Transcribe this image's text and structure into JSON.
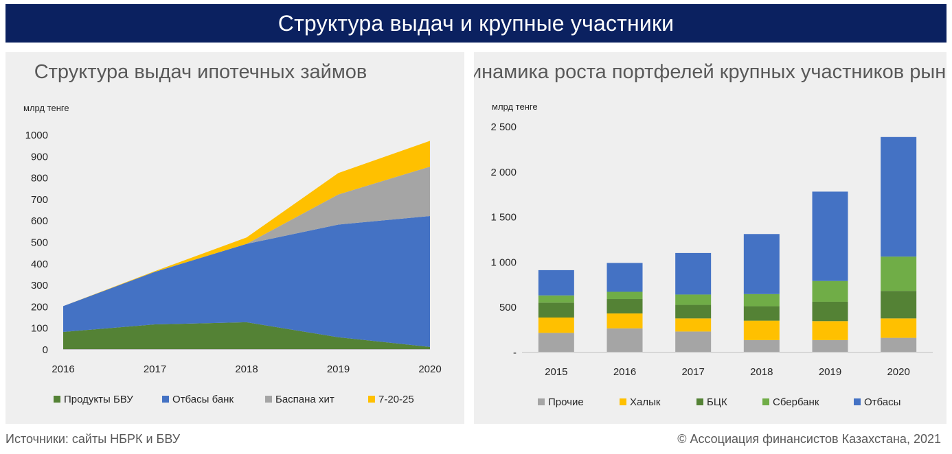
{
  "header": {
    "title": "Структура выдач и крупные участники"
  },
  "footer": {
    "source": "Источники: сайты НБРК и БВУ",
    "copyright": "© Ассоциация финансистов Казахстана, 2021"
  },
  "chart_data": [
    {
      "type": "area",
      "stacked": true,
      "title": "Структура выдач ипотечных займов",
      "ylabel": "млрд тенге",
      "xlabel": "",
      "categories": [
        "2016",
        "2017",
        "2018",
        "2019",
        "2020"
      ],
      "ylim": [
        0,
        1000
      ],
      "yticks": [
        0,
        100,
        200,
        300,
        400,
        500,
        600,
        700,
        800,
        900,
        1000
      ],
      "ytick_labels": [
        "0",
        "100",
        "200",
        "300",
        "400",
        "500",
        "600",
        "700",
        "800",
        "900",
        "1000"
      ],
      "grid": false,
      "legend_position": "bottom",
      "series": [
        {
          "name": "Продукты БВУ",
          "color": "#548235",
          "values": [
            80,
            115,
            125,
            55,
            10
          ]
        },
        {
          "name": "Отбасы банк",
          "color": "#4472c4",
          "values": [
            120,
            245,
            365,
            525,
            610
          ]
        },
        {
          "name": "Баспана хит",
          "color": "#a5a5a5",
          "values": [
            0,
            0,
            0,
            140,
            230
          ]
        },
        {
          "name": "7-20-25",
          "color": "#ffc000",
          "values": [
            0,
            3,
            30,
            100,
            120
          ]
        }
      ]
    },
    {
      "type": "bar",
      "stacked": true,
      "title": "Динамика роста портфелей крупных участников рынка",
      "ylabel": "млрд тенге",
      "xlabel": "",
      "categories": [
        "2015",
        "2016",
        "2017",
        "2018",
        "2019",
        "2020"
      ],
      "ylim": [
        0,
        2500
      ],
      "yticks": [
        0,
        500,
        1000,
        1500,
        2000,
        2500
      ],
      "ytick_labels": [
        "-",
        "500",
        "1 000",
        "1 500",
        "2 000",
        "2 500"
      ],
      "grid": false,
      "legend_position": "bottom",
      "series": [
        {
          "name": "Прочие",
          "color": "#a5a5a5",
          "values": [
            210,
            260,
            225,
            130,
            130,
            155
          ]
        },
        {
          "name": "Халык",
          "color": "#ffc000",
          "values": [
            170,
            165,
            145,
            215,
            210,
            215
          ]
        },
        {
          "name": "БЦК",
          "color": "#548235",
          "values": [
            165,
            160,
            150,
            160,
            215,
            305
          ]
        },
        {
          "name": "Сбербанк",
          "color": "#70ad47",
          "values": [
            80,
            80,
            115,
            135,
            230,
            380
          ]
        },
        {
          "name": "Отбасы",
          "color": "#4472c4",
          "values": [
            280,
            320,
            460,
            665,
            990,
            1325
          ]
        }
      ]
    }
  ]
}
